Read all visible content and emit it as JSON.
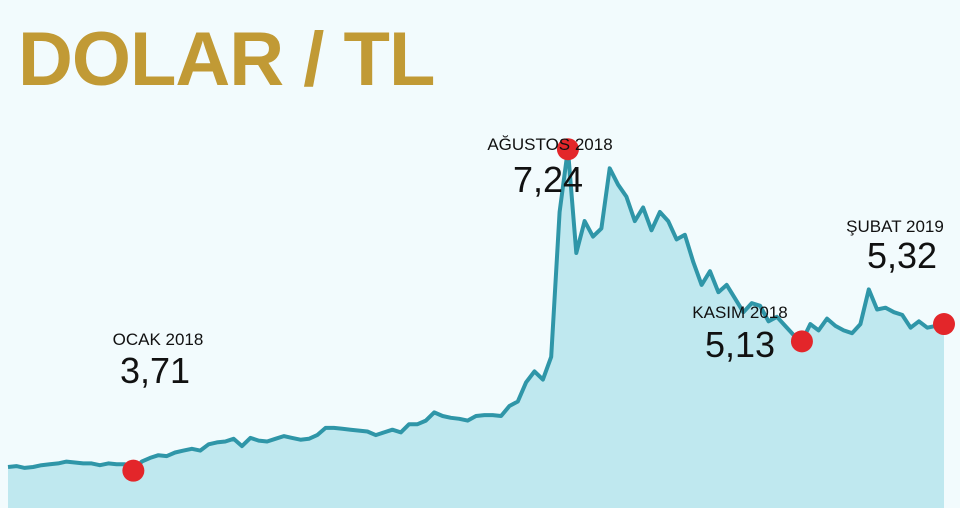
{
  "chart_data": {
    "type": "area",
    "title": "DOLAR / TL",
    "line_color": "#2f96a8",
    "fill_color": "#bfe8ef",
    "marker_color": "#e3262a",
    "values": [
      3.75,
      3.76,
      3.74,
      3.75,
      3.77,
      3.78,
      3.79,
      3.81,
      3.8,
      3.79,
      3.79,
      3.77,
      3.79,
      3.78,
      3.78,
      3.71,
      3.81,
      3.85,
      3.88,
      3.87,
      3.91,
      3.93,
      3.95,
      3.93,
      4.0,
      4.02,
      4.03,
      4.06,
      3.98,
      4.07,
      4.04,
      4.03,
      4.06,
      4.09,
      4.07,
      4.05,
      4.06,
      4.1,
      4.18,
      4.18,
      4.17,
      4.16,
      4.15,
      4.14,
      4.1,
      4.13,
      4.16,
      4.13,
      4.22,
      4.22,
      4.26,
      4.35,
      4.31,
      4.29,
      4.28,
      4.26,
      4.31,
      4.32,
      4.32,
      4.31,
      4.42,
      4.47,
      4.68,
      4.8,
      4.71,
      4.96,
      6.55,
      7.24,
      6.1,
      6.45,
      6.28,
      6.37,
      7.03,
      6.85,
      6.72,
      6.45,
      6.6,
      6.35,
      6.55,
      6.45,
      6.25,
      6.3,
      6.0,
      5.75,
      5.9,
      5.67,
      5.75,
      5.6,
      5.45,
      5.55,
      5.52,
      5.35,
      5.4,
      5.3,
      5.2,
      5.13,
      5.32,
      5.25,
      5.38,
      5.3,
      5.25,
      5.22,
      5.32,
      5.7,
      5.48,
      5.5,
      5.45,
      5.42,
      5.28,
      5.35,
      5.28,
      5.3,
      5.32
    ],
    "ylim": [
      3.3,
      8.0
    ],
    "annotations": [
      {
        "label": "OCAK 2018",
        "value": "3,71",
        "index": 15
      },
      {
        "label": "AĞUSTOS 2018",
        "value": "7,24",
        "index": 67
      },
      {
        "label": "KASIM 2018",
        "value": "5,13",
        "index": 95
      },
      {
        "label": "ŞUBAT 2019",
        "value": "5,32",
        "index": 112
      }
    ]
  }
}
